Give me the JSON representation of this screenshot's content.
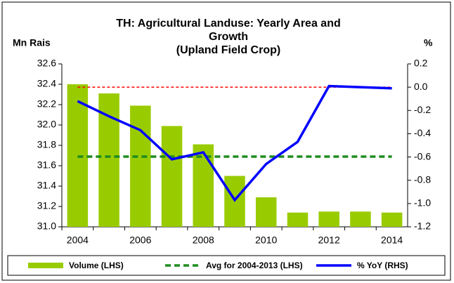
{
  "chart_data": {
    "type": "bar-line",
    "title": "TH: Agricultural Landuse: Yearly Area and Growth",
    "subtitle": "(Upland Field Crop)",
    "y_label": "Mn Rais",
    "y2_label": "%",
    "categories": [
      2004,
      null,
      2006,
      null,
      2008,
      null,
      2010,
      null,
      2012,
      null,
      2014
    ],
    "series": [
      {
        "name": "Volume (LHS)",
        "kind": "bar",
        "color": "#99cc00",
        "values": [
          32.4,
          32.31,
          32.19,
          31.99,
          31.81,
          31.5,
          31.29,
          31.14,
          31.15,
          31.15,
          31.14
        ]
      },
      {
        "name": "Avg for 2004-2013 (LHS)",
        "kind": "dashed-line",
        "color": "#1e8c1e",
        "values": [
          31.69,
          31.69,
          31.69,
          31.69,
          31.69,
          31.69,
          31.69,
          31.69,
          31.69,
          31.69,
          31.69
        ]
      },
      {
        "name": "% YoY (RHS)",
        "kind": "line",
        "axis": "y2",
        "color": "#0000ff",
        "values": [
          -0.12,
          -0.25,
          -0.37,
          -0.62,
          -0.56,
          -0.97,
          -0.66,
          -0.47,
          0.01,
          0.0,
          -0.01
        ]
      }
    ],
    "reference_lines": [
      {
        "axis": "y2",
        "value": 0,
        "color": "#ff0000"
      }
    ],
    "ylim": [
      31.0,
      32.6
    ],
    "yticks": [
      {
        "value": 31.0,
        "label": "31.0"
      },
      31.2,
      31.4,
      31.6,
      31.8,
      {
        "value": 32.0,
        "label": "32.0"
      },
      32.2,
      32.4,
      32.6
    ],
    "y2lim": [
      -1.2,
      0.2
    ],
    "y2ticks": [
      -1.2,
      {
        "value": -1.0,
        "label": "-1.0"
      },
      -0.8,
      -0.6,
      -0.4,
      -0.2,
      {
        "value": 0.0,
        "label": "0.0"
      },
      0.2
    ]
  }
}
